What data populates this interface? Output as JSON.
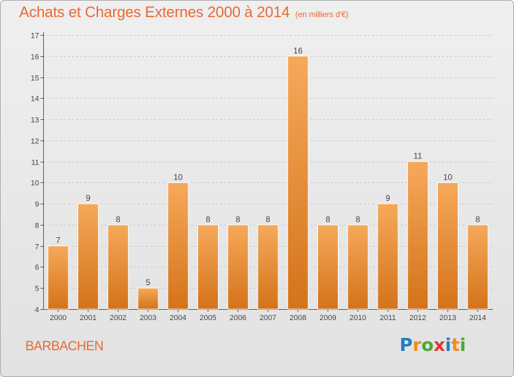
{
  "header": {
    "title": "Achats et Charges Externes 2000 à 2014",
    "subtitle": "(en milliers d'€)"
  },
  "footer": {
    "place": "BARBACHEN",
    "brand": "Proxiti",
    "brand_letters": [
      {
        "ch": "P",
        "color": "#1f7fc4"
      },
      {
        "ch": "r",
        "color": "#f08c1a"
      },
      {
        "ch": "o",
        "color": "#4aa832"
      },
      {
        "ch": "x",
        "color": "#e03a2f"
      },
      {
        "ch": "i",
        "color": "#1f7fc4"
      },
      {
        "ch": "t",
        "color": "#f08c1a"
      },
      {
        "ch": "i",
        "color": "#4aa832"
      }
    ]
  },
  "colors": {
    "accent": "#e86a33",
    "bar_top": "#f6a95a",
    "bar_bottom": "#d4731a"
  },
  "chart_data": {
    "type": "bar",
    "title": "Achats et Charges Externes 2000 à 2014",
    "subtitle": "(en milliers d'€)",
    "categories": [
      "2000",
      "2001",
      "2002",
      "2003",
      "2004",
      "2005",
      "2006",
      "2007",
      "2008",
      "2009",
      "2010",
      "2011",
      "2012",
      "2013",
      "2014"
    ],
    "values": [
      7,
      9,
      8,
      5,
      10,
      8,
      8,
      8,
      16,
      8,
      8,
      9,
      11,
      10,
      8
    ],
    "ylim": [
      4,
      17
    ],
    "yticks": [
      4,
      5,
      6,
      7,
      8,
      9,
      10,
      11,
      12,
      13,
      14,
      15,
      16,
      17
    ],
    "grid": true,
    "data_labels": true
  }
}
